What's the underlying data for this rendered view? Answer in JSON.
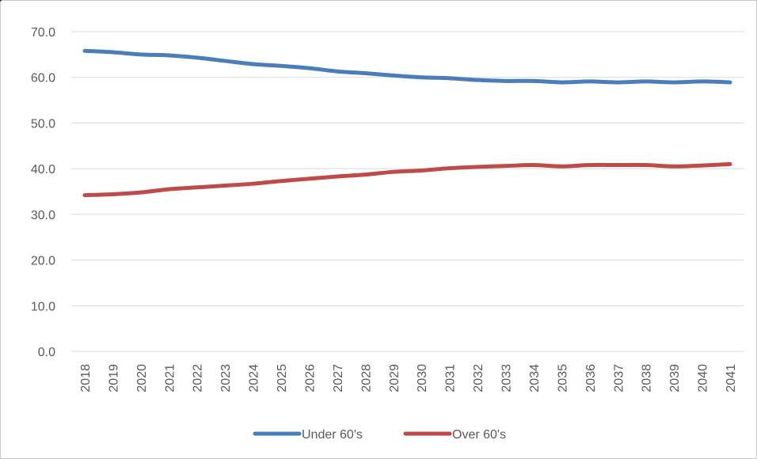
{
  "chart_data": {
    "type": "line",
    "title": "",
    "xlabel": "",
    "ylabel": "",
    "ylim": [
      0,
      70
    ],
    "y_ticks": [
      "0.0",
      "10.0",
      "20.0",
      "30.0",
      "40.0",
      "50.0",
      "60.0",
      "70.0"
    ],
    "grid": true,
    "legend_position": "bottom",
    "categories": [
      "2018",
      "2019",
      "2020",
      "2021",
      "2022",
      "2023",
      "2024",
      "2025",
      "2026",
      "2027",
      "2028",
      "2029",
      "2030",
      "2031",
      "2032",
      "2033",
      "2034",
      "2035",
      "2036",
      "2037",
      "2038",
      "2039",
      "2040",
      "2041"
    ],
    "series": [
      {
        "name": "Under 60's",
        "color": "#4a7ebb",
        "values": [
          65.8,
          65.5,
          65.0,
          64.8,
          64.3,
          63.6,
          62.9,
          62.5,
          62.0,
          61.3,
          60.9,
          60.4,
          60.0,
          59.8,
          59.4,
          59.2,
          59.2,
          58.9,
          59.1,
          58.9,
          59.1,
          58.9,
          59.1,
          58.9
        ]
      },
      {
        "name": "Over 60's",
        "color": "#be4b48",
        "values": [
          34.2,
          34.4,
          34.8,
          35.5,
          35.9,
          36.3,
          36.7,
          37.3,
          37.8,
          38.3,
          38.7,
          39.3,
          39.6,
          40.1,
          40.4,
          40.6,
          40.8,
          40.5,
          40.8,
          40.8,
          40.8,
          40.5,
          40.7,
          41.0
        ]
      }
    ]
  }
}
